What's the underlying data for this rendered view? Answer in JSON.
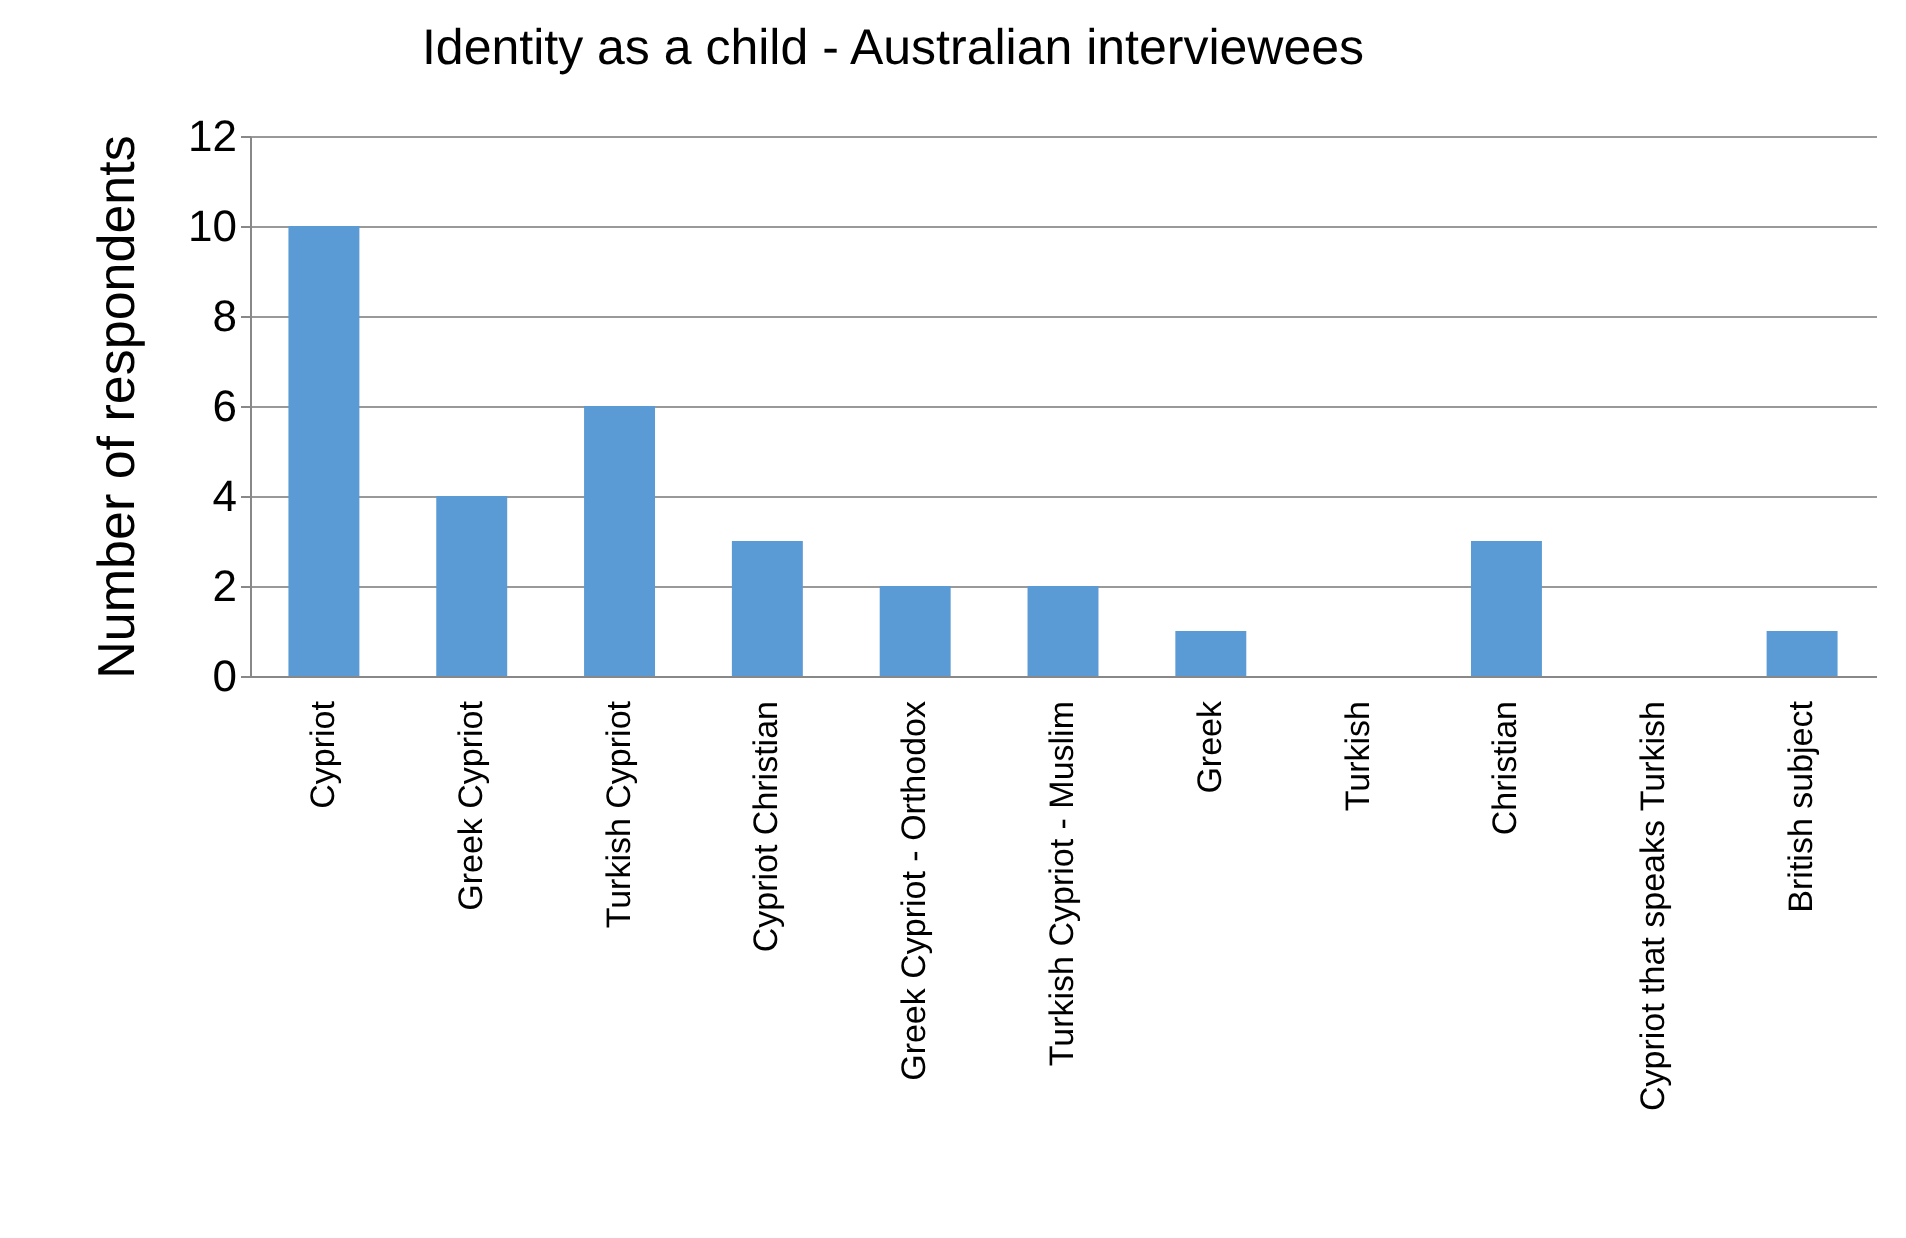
{
  "chart_data": {
    "type": "bar",
    "title": "Identity as a child - Australian interviewees",
    "ylabel": "Number of respondents",
    "categories": [
      "Cypriot",
      "Greek Cypriot",
      "Turkish Cypriot",
      "Cypriot Christian",
      "Greek Cypriot - Orthodox",
      "Turkish Cypriot - Muslim",
      "Greek",
      "Turkish",
      "Christian",
      "Cypriot that speaks Turkish",
      "British subject"
    ],
    "values": [
      10,
      4,
      6,
      3,
      2,
      2,
      1,
      0,
      3,
      0,
      1
    ],
    "color": "#5b9bd5",
    "ylim": [
      0,
      12
    ],
    "yticks": [
      0,
      2,
      4,
      6,
      8,
      10,
      12
    ],
    "grid": "y"
  }
}
